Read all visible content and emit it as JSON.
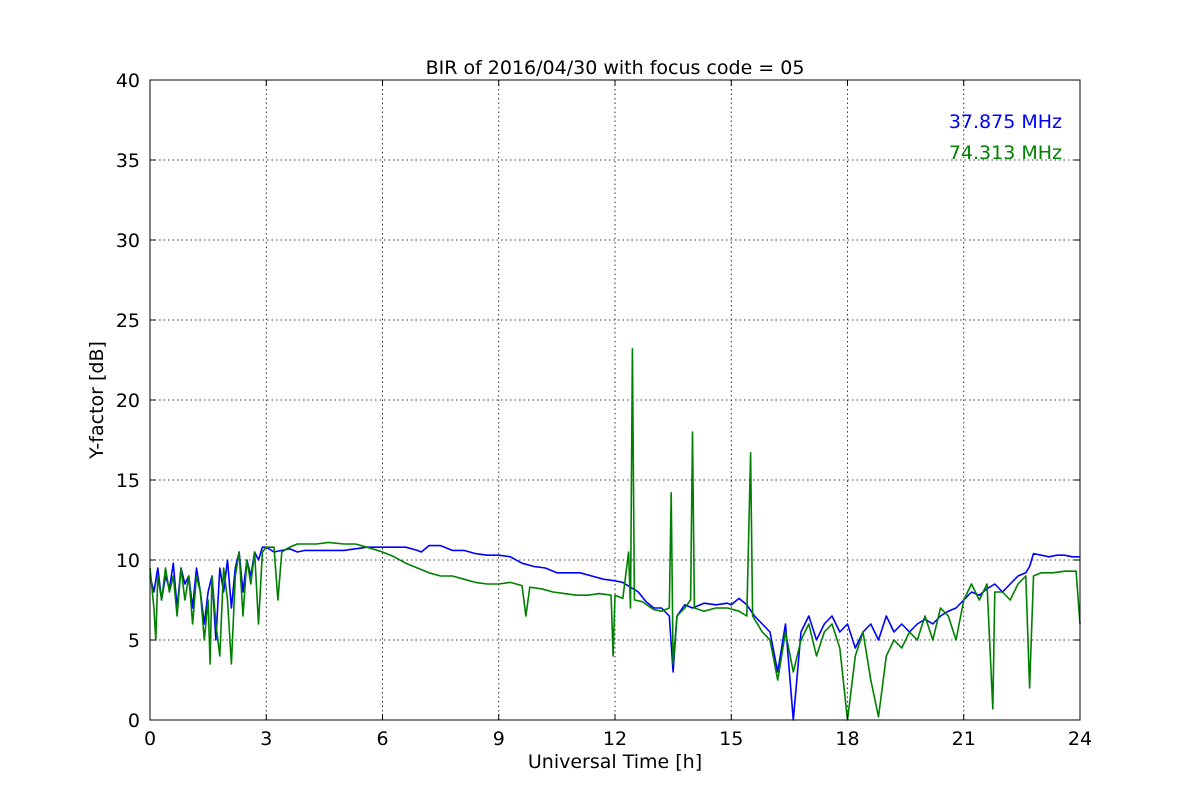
{
  "chart_data": {
    "type": "line",
    "title": "BIR of 2016/04/30 with focus code = 05",
    "xlabel": "Universal Time [h]",
    "ylabel": "Y-factor [dB]",
    "xlim": [
      0,
      24
    ],
    "ylim": [
      0,
      40
    ],
    "xticks": [
      0,
      3,
      6,
      9,
      12,
      15,
      18,
      21,
      24
    ],
    "yticks": [
      0,
      5,
      10,
      15,
      20,
      25,
      30,
      35,
      40
    ],
    "grid": true,
    "legend_position": "top-right",
    "series": [
      {
        "name": "37.875 MHz",
        "color": "#0000ff",
        "points": [
          [
            0.0,
            9.0
          ],
          [
            0.1,
            8.0
          ],
          [
            0.2,
            9.5
          ],
          [
            0.3,
            7.5
          ],
          [
            0.4,
            9.0
          ],
          [
            0.5,
            8.2
          ],
          [
            0.6,
            9.8
          ],
          [
            0.7,
            7.0
          ],
          [
            0.8,
            9.5
          ],
          [
            0.9,
            8.5
          ],
          [
            1.0,
            9.0
          ],
          [
            1.1,
            7.0
          ],
          [
            1.2,
            9.5
          ],
          [
            1.3,
            8.0
          ],
          [
            1.4,
            6.0
          ],
          [
            1.5,
            8.0
          ],
          [
            1.6,
            9.0
          ],
          [
            1.7,
            5.0
          ],
          [
            1.8,
            9.5
          ],
          [
            1.9,
            8.0
          ],
          [
            2.0,
            10.0
          ],
          [
            2.1,
            7.0
          ],
          [
            2.2,
            9.5
          ],
          [
            2.3,
            10.5
          ],
          [
            2.4,
            8.0
          ],
          [
            2.5,
            10.0
          ],
          [
            2.6,
            9.0
          ],
          [
            2.7,
            10.5
          ],
          [
            2.8,
            10.0
          ],
          [
            2.9,
            10.8
          ],
          [
            3.0,
            10.8
          ],
          [
            3.2,
            10.5
          ],
          [
            3.4,
            10.6
          ],
          [
            3.6,
            10.7
          ],
          [
            3.8,
            10.5
          ],
          [
            4.0,
            10.6
          ],
          [
            4.3,
            10.6
          ],
          [
            4.6,
            10.6
          ],
          [
            5.0,
            10.6
          ],
          [
            5.3,
            10.7
          ],
          [
            5.6,
            10.8
          ],
          [
            6.0,
            10.8
          ],
          [
            6.3,
            10.8
          ],
          [
            6.6,
            10.8
          ],
          [
            6.9,
            10.6
          ],
          [
            7.0,
            10.5
          ],
          [
            7.2,
            10.9
          ],
          [
            7.5,
            10.9
          ],
          [
            7.8,
            10.6
          ],
          [
            8.1,
            10.6
          ],
          [
            8.4,
            10.4
          ],
          [
            8.7,
            10.3
          ],
          [
            9.0,
            10.3
          ],
          [
            9.3,
            10.2
          ],
          [
            9.6,
            9.8
          ],
          [
            9.9,
            9.6
          ],
          [
            10.2,
            9.5
          ],
          [
            10.5,
            9.2
          ],
          [
            10.8,
            9.2
          ],
          [
            11.1,
            9.2
          ],
          [
            11.4,
            9.0
          ],
          [
            11.7,
            8.8
          ],
          [
            12.0,
            8.7
          ],
          [
            12.2,
            8.6
          ],
          [
            12.4,
            8.3
          ],
          [
            12.6,
            8.0
          ],
          [
            12.8,
            7.4
          ],
          [
            13.0,
            7.0
          ],
          [
            13.2,
            7.0
          ],
          [
            13.4,
            6.5
          ],
          [
            13.5,
            3.0
          ],
          [
            13.6,
            6.5
          ],
          [
            13.8,
            7.2
          ],
          [
            14.0,
            7.0
          ],
          [
            14.3,
            7.3
          ],
          [
            14.6,
            7.2
          ],
          [
            14.9,
            7.3
          ],
          [
            15.0,
            7.2
          ],
          [
            15.2,
            7.6
          ],
          [
            15.4,
            7.2
          ],
          [
            15.6,
            6.5
          ],
          [
            15.8,
            6.0
          ],
          [
            16.0,
            5.5
          ],
          [
            16.2,
            3.0
          ],
          [
            16.4,
            6.0
          ],
          [
            16.6,
            0.0
          ],
          [
            16.8,
            5.5
          ],
          [
            17.0,
            6.5
          ],
          [
            17.2,
            5.0
          ],
          [
            17.4,
            6.0
          ],
          [
            17.6,
            6.5
          ],
          [
            17.8,
            5.5
          ],
          [
            18.0,
            6.0
          ],
          [
            18.2,
            4.5
          ],
          [
            18.4,
            5.5
          ],
          [
            18.6,
            6.0
          ],
          [
            18.8,
            5.0
          ],
          [
            19.0,
            6.5
          ],
          [
            19.2,
            5.5
          ],
          [
            19.4,
            6.0
          ],
          [
            19.6,
            5.5
          ],
          [
            19.8,
            6.0
          ],
          [
            20.0,
            6.3
          ],
          [
            20.2,
            6.0
          ],
          [
            20.4,
            6.5
          ],
          [
            20.6,
            6.8
          ],
          [
            20.8,
            7.0
          ],
          [
            21.0,
            7.5
          ],
          [
            21.2,
            8.0
          ],
          [
            21.4,
            7.8
          ],
          [
            21.6,
            8.2
          ],
          [
            21.8,
            8.5
          ],
          [
            22.0,
            8.0
          ],
          [
            22.2,
            8.5
          ],
          [
            22.4,
            9.0
          ],
          [
            22.6,
            9.2
          ],
          [
            22.7,
            9.6
          ],
          [
            22.8,
            10.4
          ],
          [
            23.0,
            10.3
          ],
          [
            23.2,
            10.2
          ],
          [
            23.4,
            10.3
          ],
          [
            23.6,
            10.3
          ],
          [
            23.8,
            10.2
          ],
          [
            24.0,
            10.2
          ]
        ]
      },
      {
        "name": "74.313 MHz",
        "color": "#008000",
        "points": [
          [
            0.0,
            9.5
          ],
          [
            0.1,
            7.0
          ],
          [
            0.15,
            5.0
          ],
          [
            0.2,
            9.0
          ],
          [
            0.3,
            7.5
          ],
          [
            0.4,
            9.5
          ],
          [
            0.5,
            8.0
          ],
          [
            0.6,
            9.0
          ],
          [
            0.7,
            6.5
          ],
          [
            0.8,
            9.5
          ],
          [
            0.9,
            7.5
          ],
          [
            1.0,
            9.0
          ],
          [
            1.1,
            6.0
          ],
          [
            1.2,
            9.0
          ],
          [
            1.3,
            8.0
          ],
          [
            1.4,
            5.0
          ],
          [
            1.5,
            7.5
          ],
          [
            1.55,
            3.5
          ],
          [
            1.6,
            9.0
          ],
          [
            1.7,
            6.0
          ],
          [
            1.8,
            4.0
          ],
          [
            1.9,
            9.5
          ],
          [
            2.0,
            7.5
          ],
          [
            2.1,
            3.5
          ],
          [
            2.2,
            9.0
          ],
          [
            2.3,
            10.5
          ],
          [
            2.4,
            6.5
          ],
          [
            2.5,
            10.0
          ],
          [
            2.6,
            8.5
          ],
          [
            2.7,
            10.5
          ],
          [
            2.8,
            6.0
          ],
          [
            2.9,
            10.5
          ],
          [
            3.0,
            10.8
          ],
          [
            3.2,
            10.8
          ],
          [
            3.3,
            7.5
          ],
          [
            3.4,
            10.5
          ],
          [
            3.6,
            10.8
          ],
          [
            3.8,
            11.0
          ],
          [
            4.0,
            11.0
          ],
          [
            4.3,
            11.0
          ],
          [
            4.6,
            11.1
          ],
          [
            5.0,
            11.0
          ],
          [
            5.3,
            11.0
          ],
          [
            5.6,
            10.8
          ],
          [
            6.0,
            10.5
          ],
          [
            6.3,
            10.2
          ],
          [
            6.6,
            9.8
          ],
          [
            6.9,
            9.5
          ],
          [
            7.2,
            9.2
          ],
          [
            7.5,
            9.0
          ],
          [
            7.8,
            9.0
          ],
          [
            8.1,
            8.8
          ],
          [
            8.4,
            8.6
          ],
          [
            8.7,
            8.5
          ],
          [
            9.0,
            8.5
          ],
          [
            9.3,
            8.6
          ],
          [
            9.6,
            8.4
          ],
          [
            9.7,
            6.5
          ],
          [
            9.8,
            8.3
          ],
          [
            10.1,
            8.2
          ],
          [
            10.4,
            8.0
          ],
          [
            10.7,
            7.9
          ],
          [
            11.0,
            7.8
          ],
          [
            11.3,
            7.8
          ],
          [
            11.6,
            7.9
          ],
          [
            11.9,
            7.8
          ],
          [
            11.95,
            4.0
          ],
          [
            12.0,
            7.8
          ],
          [
            12.2,
            7.6
          ],
          [
            12.35,
            10.5
          ],
          [
            12.4,
            7.0
          ],
          [
            12.45,
            23.2
          ],
          [
            12.5,
            7.5
          ],
          [
            12.7,
            7.4
          ],
          [
            13.0,
            6.9
          ],
          [
            13.2,
            6.8
          ],
          [
            13.4,
            7.0
          ],
          [
            13.45,
            14.2
          ],
          [
            13.5,
            3.5
          ],
          [
            13.6,
            6.5
          ],
          [
            13.8,
            7.0
          ],
          [
            13.95,
            7.5
          ],
          [
            14.0,
            18.0
          ],
          [
            14.05,
            7.0
          ],
          [
            14.3,
            6.8
          ],
          [
            14.6,
            7.0
          ],
          [
            14.9,
            7.0
          ],
          [
            15.2,
            6.8
          ],
          [
            15.4,
            6.5
          ],
          [
            15.5,
            16.7
          ],
          [
            15.55,
            6.5
          ],
          [
            15.8,
            5.5
          ],
          [
            16.0,
            5.0
          ],
          [
            16.2,
            2.5
          ],
          [
            16.4,
            5.5
          ],
          [
            16.6,
            3.0
          ],
          [
            16.8,
            5.0
          ],
          [
            17.0,
            6.0
          ],
          [
            17.2,
            4.0
          ],
          [
            17.4,
            5.5
          ],
          [
            17.6,
            6.0
          ],
          [
            17.8,
            4.5
          ],
          [
            18.0,
            0.0
          ],
          [
            18.2,
            4.0
          ],
          [
            18.4,
            5.5
          ],
          [
            18.6,
            2.5
          ],
          [
            18.8,
            0.2
          ],
          [
            19.0,
            4.0
          ],
          [
            19.2,
            5.0
          ],
          [
            19.4,
            4.5
          ],
          [
            19.6,
            5.5
          ],
          [
            19.8,
            5.0
          ],
          [
            20.0,
            6.5
          ],
          [
            20.2,
            5.0
          ],
          [
            20.4,
            7.0
          ],
          [
            20.6,
            6.5
          ],
          [
            20.8,
            5.0
          ],
          [
            21.0,
            7.5
          ],
          [
            21.2,
            8.5
          ],
          [
            21.4,
            7.5
          ],
          [
            21.6,
            8.5
          ],
          [
            21.75,
            0.7
          ],
          [
            21.8,
            8.0
          ],
          [
            22.0,
            8.0
          ],
          [
            22.2,
            7.5
          ],
          [
            22.4,
            8.5
          ],
          [
            22.6,
            9.0
          ],
          [
            22.7,
            2.0
          ],
          [
            22.8,
            9.0
          ],
          [
            23.0,
            9.2
          ],
          [
            23.3,
            9.2
          ],
          [
            23.6,
            9.3
          ],
          [
            23.9,
            9.3
          ],
          [
            24.0,
            6.0
          ]
        ]
      }
    ]
  }
}
